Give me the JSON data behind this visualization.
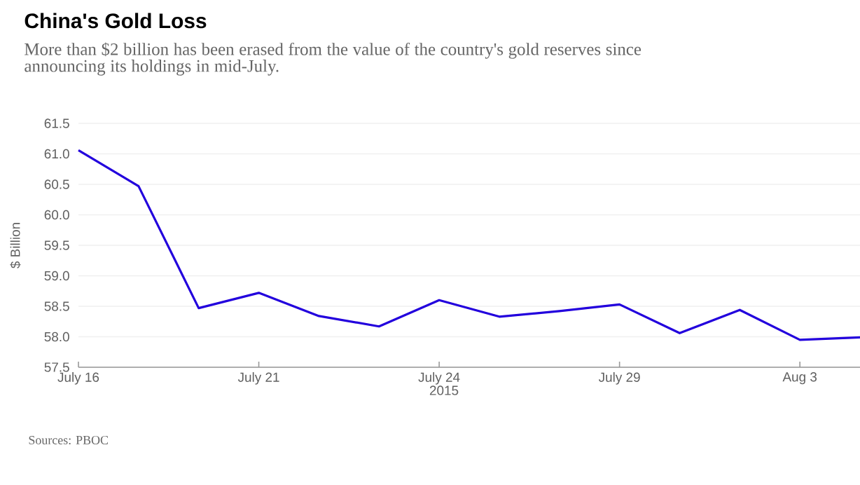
{
  "chart_data": {
    "type": "line",
    "title": "China's Gold Loss",
    "subtitle": "More than $2 billion has been erased from the value of the country's gold reserves since announcing its holdings in mid-July.",
    "categories": [
      "July 16",
      null,
      null,
      "July 21",
      null,
      null,
      "July 24",
      null,
      null,
      "July 29",
      null,
      null,
      "Aug 3",
      null
    ],
    "series": [
      {
        "color": "#2200dd",
        "values": [
          61.06,
          60.47,
          58.47,
          58.72,
          58.34,
          58.17,
          58.6,
          58.33,
          58.42,
          58.53,
          58.06,
          58.44,
          57.95,
          57.99
        ]
      }
    ],
    "xlabel": "2015",
    "ylabel": "$ Billion",
    "ylim": [
      57.5,
      61.5
    ],
    "yticks": [
      57.5,
      {
        "value": 58,
        "label": "58.0"
      },
      58.5,
      {
        "value": 59,
        "label": "59.0"
      },
      59.5,
      {
        "value": 60,
        "label": "60.0"
      },
      60.5,
      {
        "value": 61,
        "label": "61.0"
      },
      61.5
    ],
    "grid": "y",
    "marker": "none",
    "line_style": "solid",
    "annotations": [
      "Sources: PBOC"
    ]
  }
}
